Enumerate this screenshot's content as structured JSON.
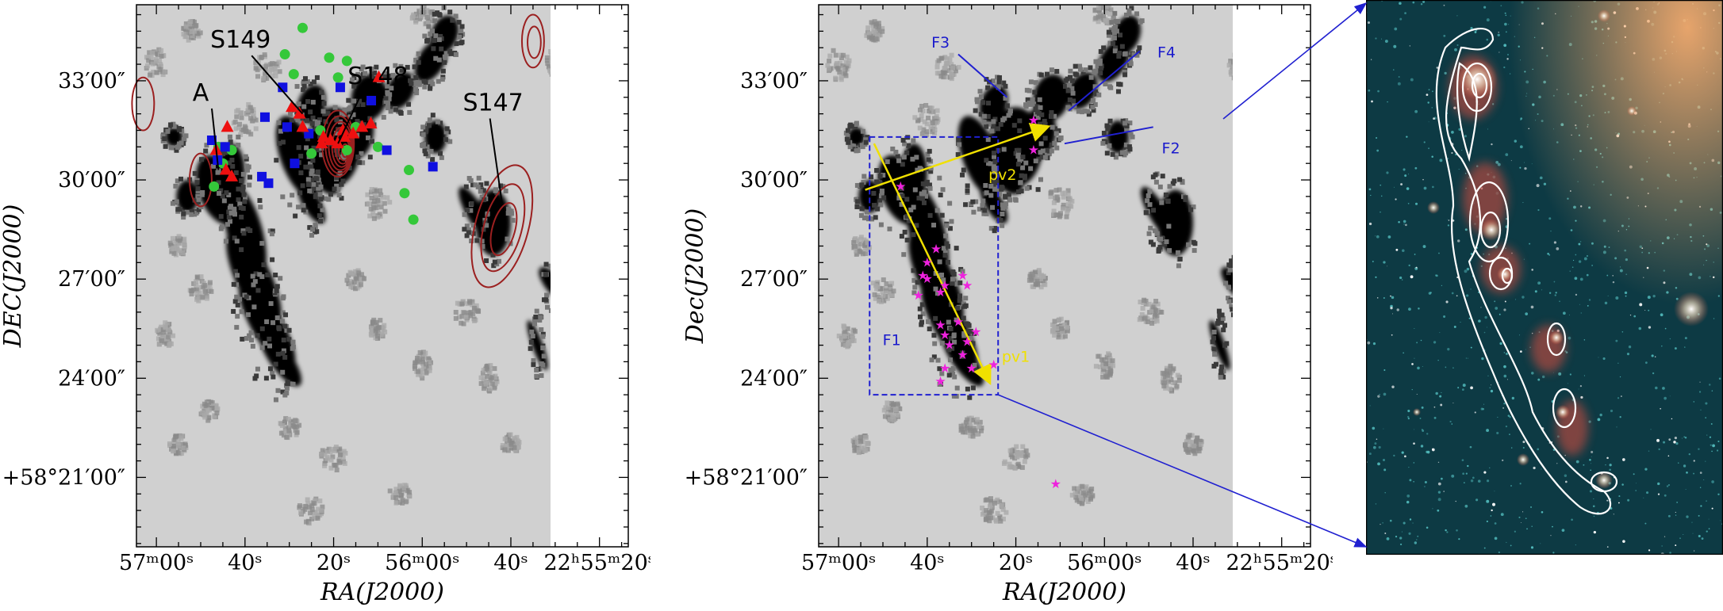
{
  "colors": {
    "map_background": "#d0d0d0",
    "dense_gas": "#000000",
    "contour": "#9b2020",
    "blue_square": "#1010e0",
    "green_circle": "#35c83a",
    "red_triangle": "#ee1010",
    "magenta_star": "#ee22dd",
    "cut_line": "#f0e000",
    "box_line": "#2020d0",
    "filament_label": "#1a1acc",
    "ir_background": "#0d3a44",
    "ir_contour": "#ffffff"
  },
  "chart_data": [
    {
      "type": "heatmap",
      "panel": "left",
      "title": "",
      "xlabel": "RA(J2000)",
      "ylabel": "DEC(J2000)",
      "x_tick_labels": [
        "57ᵐ00ˢ",
        "40ˢ",
        "20ˢ",
        "56ᵐ00ˢ",
        "40ˢ",
        "22ʰ55ᵐ20ˢ"
      ],
      "y_tick_labels": [
        "33′00″",
        "30′00″",
        "27′00″",
        "24′00″",
        "+58°21′00″"
      ],
      "x_ticks_s": [
        1020,
        1000,
        980,
        960,
        940,
        920
      ],
      "y_ticks_arcmin": [
        33,
        30,
        27,
        24,
        21
      ],
      "xlim_s": [
        1024.5,
        913.5
      ],
      "ylim_arcmin": [
        18.9,
        35.3
      ],
      "annotations": [
        {
          "text": "A",
          "ra_s": 1006,
          "dec_arcmin": 30.3,
          "label_ra_s": 1010,
          "label_dec_arcmin": 32.4
        },
        {
          "text": "S149",
          "ra_s": 987,
          "dec_arcmin": 32.0,
          "label_ra_s": 1001,
          "label_dec_arcmin": 34.0
        },
        {
          "text": "S148",
          "ra_s": 979,
          "dec_arcmin": 31.1,
          "label_ra_s": 970,
          "label_dec_arcmin": 32.9
        },
        {
          "text": "S147",
          "ra_s": 942,
          "dec_arcmin": 29.3,
          "label_ra_s": 944,
          "label_dec_arcmin": 32.1
        }
      ],
      "markers": {
        "blue_squares": [
          [
            991.5,
            32.8
          ],
          [
            978.5,
            32.8
          ],
          [
            971.5,
            32.4
          ],
          [
            1007.5,
            31.2
          ],
          [
            1004.5,
            31.0
          ],
          [
            995.5,
            31.9
          ],
          [
            990.5,
            31.6
          ],
          [
            968,
            30.9
          ],
          [
            985.6,
            31.4
          ],
          [
            988.8,
            30.5
          ],
          [
            996.2,
            30.1
          ],
          [
            994.7,
            29.9
          ],
          [
            957.6,
            30.4
          ],
          [
            1006.2,
            30.6
          ]
        ],
        "green_circles": [
          [
            987,
            34.6
          ],
          [
            991,
            33.8
          ],
          [
            981,
            33.7
          ],
          [
            977,
            33.6
          ],
          [
            989,
            33.2
          ],
          [
            979,
            33.1
          ],
          [
            983,
            31.5
          ],
          [
            975,
            31.6
          ],
          [
            977,
            30.9
          ],
          [
            963,
            30.3
          ],
          [
            964,
            29.6
          ],
          [
            962,
            28.8
          ],
          [
            1005,
            30.5
          ],
          [
            1003,
            30.9
          ],
          [
            985,
            30.8
          ],
          [
            970,
            31.0
          ],
          [
            1006,
            31.0
          ],
          [
            1007,
            29.8
          ]
        ],
        "red_triangles": [
          [
            1004,
            31.6
          ],
          [
            1006.5,
            30.9
          ],
          [
            1004.3,
            30.3
          ],
          [
            1003,
            30.1
          ],
          [
            989.4,
            32.2
          ],
          [
            987.7,
            32.0
          ],
          [
            987.0,
            31.6
          ],
          [
            982.3,
            31.3
          ],
          [
            979.1,
            31.1
          ],
          [
            977.6,
            31.3
          ],
          [
            975.6,
            31.4
          ],
          [
            973.6,
            31.6
          ],
          [
            971.6,
            31.7
          ],
          [
            982.7,
            31.1
          ],
          [
            980.7,
            31.2
          ],
          [
            977.9,
            31.5
          ],
          [
            969.8,
            33.1
          ]
        ]
      },
      "contours": [
        {
          "ra_s": 979,
          "dec_arcmin": 31.1,
          "levels": 7
        },
        {
          "ra_s": 942,
          "dec_arcmin": 28.6,
          "levels": 3
        },
        {
          "ra_s": 935,
          "dec_arcmin": 34.2,
          "levels": 2
        },
        {
          "ra_s": 1023,
          "dec_arcmin": 32.3,
          "levels": 1
        },
        {
          "ra_s": 1010,
          "dec_arcmin": 30.0,
          "levels": 1
        }
      ]
    },
    {
      "type": "heatmap",
      "panel": "middle",
      "title": "",
      "xlabel": "RA(J2000)",
      "ylabel": "Dec(J2000)",
      "x_tick_labels": [
        "57ᵐ00ˢ",
        "40ˢ",
        "20ˢ",
        "56ᵐ00ˢ",
        "40ˢ",
        "22ʰ55ᵐ20ˢ"
      ],
      "y_tick_labels": [
        "33′00″",
        "30′00″",
        "27′00″",
        "24′00″",
        "+58°21′00″"
      ],
      "x_ticks_s": [
        1020,
        1000,
        980,
        960,
        940,
        920
      ],
      "y_ticks_arcmin": [
        33,
        30,
        27,
        24,
        21
      ],
      "xlim_s": [
        1024.5,
        913.5
      ],
      "ylim_arcmin": [
        18.9,
        35.3
      ],
      "annotations": [
        {
          "text": "F1",
          "ra_s": 1008,
          "dec_arcmin": 25.0
        },
        {
          "text": "F2",
          "ra_s": 945,
          "dec_arcmin": 30.8
        },
        {
          "text": "F3",
          "ra_s": 997,
          "dec_arcmin": 34.0
        },
        {
          "text": "F4",
          "ra_s": 946,
          "dec_arcmin": 33.7
        },
        {
          "text": "pv1",
          "ra_s": 980,
          "dec_arcmin": 24.5
        },
        {
          "text": "pv2",
          "ra_s": 983,
          "dec_arcmin": 30.0
        }
      ],
      "magenta_stars": [
        [
          976,
          31.8
        ],
        [
          1006,
          29.8
        ],
        [
          998,
          27.9
        ],
        [
          1000,
          27.5
        ],
        [
          992,
          27.1
        ],
        [
          1000,
          27.0
        ],
        [
          997,
          26.6
        ],
        [
          996,
          26.8
        ],
        [
          991,
          26.8
        ],
        [
          1001,
          27.1
        ],
        [
          1002,
          26.5
        ],
        [
          997,
          25.6
        ],
        [
          993,
          25.7
        ],
        [
          996,
          25.3
        ],
        [
          991,
          25.1
        ],
        [
          995,
          25.0
        ],
        [
          989,
          25.4
        ],
        [
          992,
          24.7
        ],
        [
          990,
          24.3
        ],
        [
          985,
          24.4
        ],
        [
          997,
          23.9
        ],
        [
          996,
          24.3
        ],
        [
          971,
          20.8
        ],
        [
          976,
          30.9
        ]
      ],
      "pv_cuts": [
        {
          "name": "pv1",
          "from": [
            1012,
            31.1
          ],
          "to": [
            986,
            23.9
          ]
        },
        {
          "name": "pv2",
          "from": [
            1014,
            29.7
          ],
          "to": [
            973,
            31.6
          ]
        }
      ],
      "filament_lines": [
        {
          "name": "F3",
          "from": [
            993,
            33.8
          ],
          "to": [
            982,
            32.5
          ]
        },
        {
          "name": "F4",
          "from": [
            968,
            32.1
          ],
          "to": [
            952,
            33.9
          ]
        },
        {
          "name": "F2",
          "from": [
            969,
            31.1
          ],
          "to": [
            949,
            31.6
          ]
        }
      ],
      "zoom_box": {
        "ra_range_s": [
          1013,
          984
        ],
        "dec_range_arcmin": [
          23.5,
          31.3
        ]
      }
    }
  ]
}
